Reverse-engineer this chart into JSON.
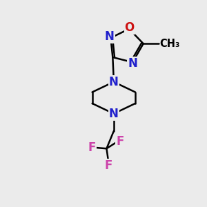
{
  "bg_color": "#ebebeb",
  "bond_color": "#000000",
  "N_color": "#2020cc",
  "O_color": "#cc1111",
  "F_color": "#cc44aa",
  "line_width": 1.8,
  "figsize": [
    3.0,
    3.0
  ],
  "dpi": 100,
  "xlim": [
    0,
    10
  ],
  "ylim": [
    0,
    10
  ],
  "font_size": 12
}
